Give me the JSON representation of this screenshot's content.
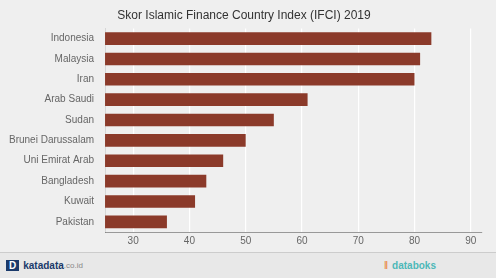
{
  "chart_data": {
    "type": "bar",
    "orientation": "horizontal",
    "title": "Skor Islamic Finance Country Index (IFCI) 2019",
    "categories": [
      "Pakistan",
      "Kuwait",
      "Bangladesh",
      "Uni Emirat Arab",
      "Brunei Darussalam",
      "Sudan",
      "Arab Saudi",
      "Iran",
      "Malaysia",
      "Indonesia"
    ],
    "values": [
      36,
      41,
      43,
      46,
      50,
      55,
      61,
      80,
      81,
      83
    ],
    "color": "#8B3A2A",
    "xlim": [
      25,
      92
    ],
    "xticks": [
      30,
      40,
      50,
      60,
      70,
      80,
      90
    ],
    "grid": true,
    "annotations": [
      "D",
      "katadata",
      ".co.id",
      "‖",
      "databoks"
    ]
  }
}
